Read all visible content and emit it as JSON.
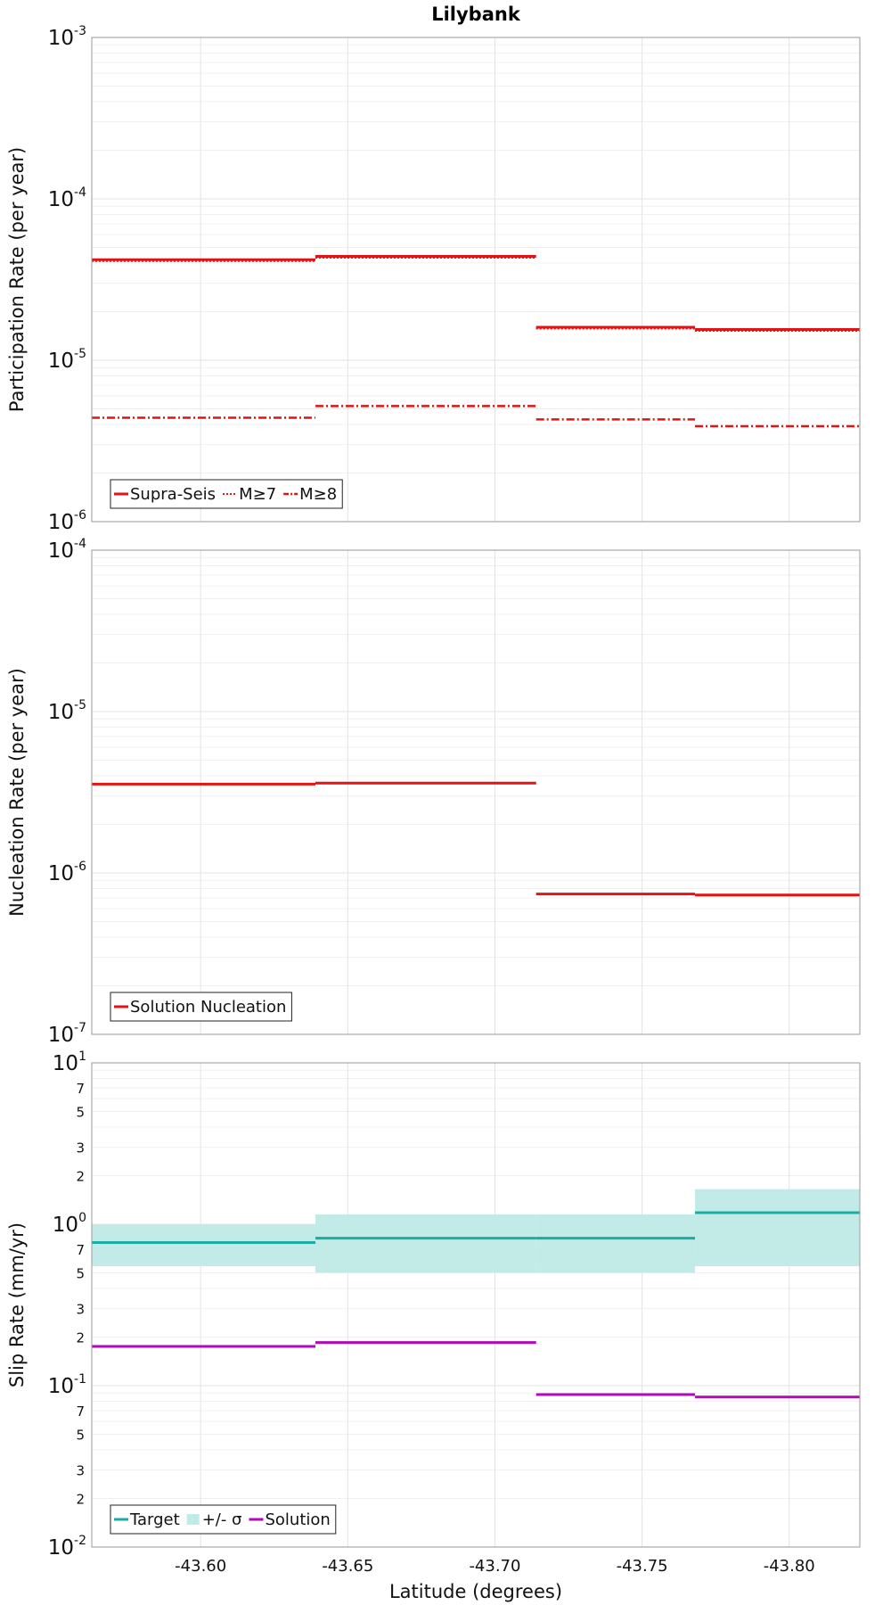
{
  "title": "Lilybank",
  "xlabel": "Latitude (degrees)",
  "x_ticks": [
    -43.6,
    -43.65,
    -43.7,
    -43.75,
    -43.8
  ],
  "x_tick_labels": [
    "-43.60",
    "-43.65",
    "-43.70",
    "-43.75",
    "-43.80"
  ],
  "xlim": [
    -43.563,
    -43.824
  ],
  "x_reversed": true,
  "colors": {
    "red": "#e01414",
    "teal": "#1aada3",
    "teal_band": "#bfeae7",
    "purple": "#b10ab8"
  },
  "chart_data": [
    {
      "type": "line",
      "step": true,
      "ylabel": "Participation Rate (per year)",
      "yscale": "log",
      "ylim_exp": [
        -6,
        -3
      ],
      "y_tick_labels": [
        {
          "base": "10",
          "exp": "-6"
        },
        {
          "base": "10",
          "exp": "-5"
        },
        {
          "base": "10",
          "exp": "-4"
        },
        {
          "base": "10",
          "exp": "-3"
        }
      ],
      "x_edges": [
        -43.563,
        -43.639,
        -43.714,
        -43.768,
        -43.824
      ],
      "series": [
        {
          "name": "Supra-Seis",
          "style": "solid",
          "color": "red",
          "values": [
            4.2e-05,
            4.4e-05,
            1.6e-05,
            1.55e-05
          ]
        },
        {
          "name": "M≥7",
          "style": "dotted",
          "color": "red",
          "values": [
            4.2e-05,
            4.4e-05,
            1.6e-05,
            1.55e-05
          ]
        },
        {
          "name": "M≥8",
          "style": "dashdot",
          "color": "red",
          "values": [
            4.4e-06,
            5.2e-06,
            4.3e-06,
            3.9e-06
          ]
        }
      ]
    },
    {
      "type": "line",
      "step": true,
      "ylabel": "Nucleation Rate (per year)",
      "yscale": "log",
      "ylim_exp": [
        -7,
        -4
      ],
      "y_tick_labels": [
        {
          "base": "10",
          "exp": "-7"
        },
        {
          "base": "10",
          "exp": "-6"
        },
        {
          "base": "10",
          "exp": "-5"
        },
        {
          "base": "10",
          "exp": "-4"
        }
      ],
      "x_edges": [
        -43.563,
        -43.639,
        -43.714,
        -43.768,
        -43.824
      ],
      "series": [
        {
          "name": "Solution Nucleation",
          "style": "solid",
          "color": "red",
          "values": [
            3.55e-06,
            3.6e-06,
            7.4e-07,
            7.3e-07
          ]
        }
      ]
    },
    {
      "type": "line",
      "step": true,
      "ylabel": "Slip Rate (mm/yr)",
      "yscale": "log",
      "ylim_exp": [
        -2,
        1
      ],
      "y_tick_labels": [
        {
          "base": "10",
          "exp": "-2"
        },
        {
          "base": "10",
          "exp": "-1"
        },
        {
          "base": "10",
          "exp": "0"
        },
        {
          "base": "10",
          "exp": "1"
        }
      ],
      "minor_tick_labels": [
        "2",
        "3",
        "5",
        "7"
      ],
      "x_edges": [
        -43.563,
        -43.639,
        -43.714,
        -43.768,
        -43.824
      ],
      "series": [
        {
          "name": "Target",
          "style": "solid",
          "color": "teal",
          "values": [
            0.77,
            0.82,
            0.82,
            1.18
          ]
        },
        {
          "name": "+/- σ",
          "style": "band",
          "color": "teal_band",
          "lower": [
            0.55,
            0.5,
            0.5,
            0.55
          ],
          "upper": [
            1.0,
            1.15,
            1.15,
            1.65
          ]
        },
        {
          "name": "Solution",
          "style": "solid",
          "color": "purple",
          "values": [
            0.175,
            0.185,
            0.088,
            0.085
          ]
        }
      ]
    }
  ]
}
